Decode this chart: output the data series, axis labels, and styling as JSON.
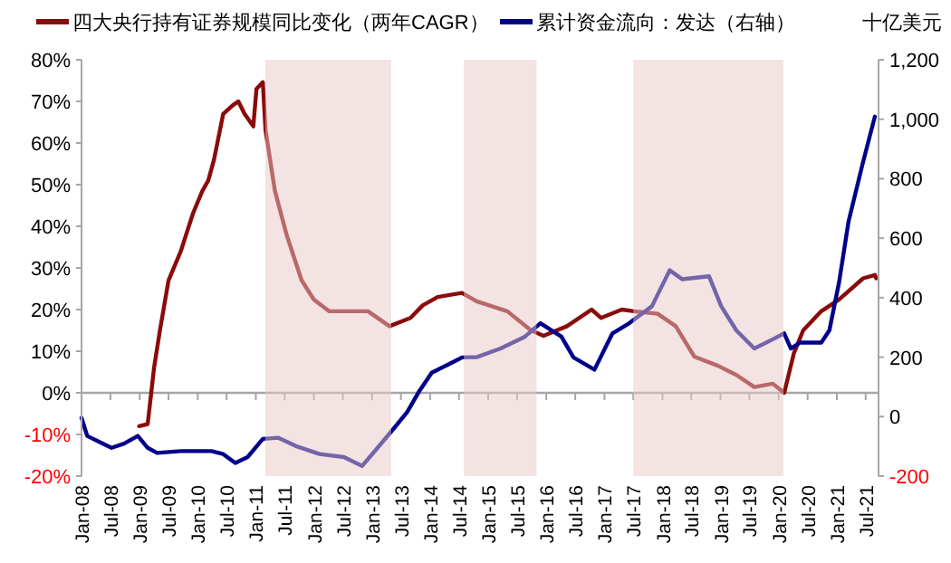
{
  "chart_data": {
    "type": "line",
    "y2label": "十亿美元",
    "legend": "top",
    "xlim": [
      "2008-01-01",
      "2021-09-20"
    ],
    "xticks": [
      {
        "value": "2008-01",
        "label": "Jan-08"
      },
      {
        "value": "2008-07",
        "label": "Jul-08"
      },
      {
        "value": "2009-01",
        "label": "Jan-09"
      },
      {
        "value": "2009-07",
        "label": "Jul-09"
      },
      {
        "value": "2010-01",
        "label": "Jan-10"
      },
      {
        "value": "2010-07",
        "label": "Jul-10"
      },
      {
        "value": "2011-01",
        "label": "Jan-11"
      },
      {
        "value": "2011-07",
        "label": "Jul-11"
      },
      {
        "value": "2012-01",
        "label": "Jan-12"
      },
      {
        "value": "2012-07",
        "label": "Jul-12"
      },
      {
        "value": "2013-01",
        "label": "Jan-13"
      },
      {
        "value": "2013-07",
        "label": "Jul-13"
      },
      {
        "value": "2014-01",
        "label": "Jan-14"
      },
      {
        "value": "2014-07",
        "label": "Jul-14"
      },
      {
        "value": "2015-01",
        "label": "Jan-15"
      },
      {
        "value": "2015-07",
        "label": "Jul-15"
      },
      {
        "value": "2016-01",
        "label": "Jan-16"
      },
      {
        "value": "2016-07",
        "label": "Jul-16"
      },
      {
        "value": "2017-01",
        "label": "Jan-17"
      },
      {
        "value": "2017-07",
        "label": "Jul-17"
      },
      {
        "value": "2018-01",
        "label": "Jan-18"
      },
      {
        "value": "2018-07",
        "label": "Jul-18"
      },
      {
        "value": "2019-01",
        "label": "Jan-19"
      },
      {
        "value": "2019-07",
        "label": "Jul-19"
      },
      {
        "value": "2020-01",
        "label": "Jan-20"
      },
      {
        "value": "2020-07",
        "label": "Jul-20"
      },
      {
        "value": "2021-01",
        "label": "Jan-21"
      },
      {
        "value": "2021-07",
        "label": "Jul-21"
      }
    ],
    "ylim": [
      -20,
      80
    ],
    "yticks": [
      {
        "value": -20,
        "label": "-20%"
      },
      {
        "value": -10,
        "label": "-10%"
      },
      {
        "value": 0,
        "label": "0%"
      },
      {
        "value": 10,
        "label": "10%"
      },
      {
        "value": 20,
        "label": "20%"
      },
      {
        "value": 30,
        "label": "30%"
      },
      {
        "value": 40,
        "label": "40%"
      },
      {
        "value": 50,
        "label": "50%"
      },
      {
        "value": 60,
        "label": "60%"
      },
      {
        "value": 70,
        "label": "70%"
      },
      {
        "value": 80,
        "label": "80%"
      }
    ],
    "y2lim": [
      -200,
      1200
    ],
    "y2ticks": [
      -200,
      0,
      200,
      400,
      600,
      800,
      {
        "value": 1000,
        "label": "1,000"
      },
      {
        "value": 1200,
        "label": "1,200"
      }
    ],
    "bands": [
      {
        "axis": "x",
        "from": "2011-03-01",
        "to": "2013-05-01",
        "color": "#e8c8c8"
      },
      {
        "axis": "x",
        "from": "2014-08-01",
        "to": "2015-11-01",
        "color": "#e8c8c8"
      },
      {
        "axis": "x",
        "from": "2017-07-01",
        "to": "2020-02-01",
        "color": "#e8c8c8"
      }
    ],
    "series": [
      {
        "name": "四大央行持有证券规模同比变化（两年CAGR）",
        "color": "#8b0a0a",
        "x": [
          "2008-12-28",
          "2009-02-20",
          "2009-04-01",
          "2009-05-08",
          "2009-07-01",
          "2009-09-16",
          "2009-12-01",
          "2010-01-30",
          "2010-03-08",
          "2010-04-13",
          "2010-06-10",
          "2010-08-07",
          "2010-09-13",
          "2010-10-22",
          "2010-12-16",
          "2011-01-05",
          "2011-02-14",
          "2011-03-03",
          "2011-05-01",
          "2011-07-13",
          "2011-10-16",
          "2012-01-01",
          "2012-04-05",
          "2012-07-27",
          "2012-12-06",
          "2013-04-20",
          "2013-08-30",
          "2013-11-15",
          "2014-02-17",
          "2014-07-20",
          "2014-10-20",
          "2015-05-01",
          "2015-09-27",
          "2015-12-15",
          "2016-05-10",
          "2016-10-12",
          "2016-12-10",
          "2017-04-20",
          "2017-07-05",
          "2017-12-01",
          "2018-03-25",
          "2018-07-20",
          "2018-12-16",
          "2019-04-10",
          "2019-08-01",
          "2019-11-25",
          "2020-02-05",
          "2020-04-05",
          "2020-06-03",
          "2020-09-25",
          "2021-01-15",
          "2021-06-15",
          "2021-08-28",
          "2021-09-05"
        ],
        "values": [
          -8,
          -7.5,
          6,
          15,
          27,
          34,
          43,
          48.5,
          51,
          56,
          67,
          69,
          70,
          67,
          64,
          73,
          74.6,
          63,
          48.5,
          38,
          27,
          22.4,
          19.6,
          19.6,
          19.6,
          16,
          18,
          21,
          23,
          24,
          22,
          19.6,
          15,
          13.7,
          16,
          20,
          18,
          20,
          19.6,
          19,
          16,
          8.7,
          6.5,
          4.3,
          1.4,
          2.2,
          0,
          9.4,
          15,
          19.6,
          22.4,
          27.5,
          28.3,
          27.5
        ]
      },
      {
        "name": "累计资金流向：发达（右轴）",
        "color": "#00008b",
        "axis": "y2",
        "x": [
          "2008-01-01",
          "2008-02-06",
          "2008-04-22",
          "2008-07-08",
          "2008-09-24",
          "2008-12-20",
          "2009-02-20",
          "2009-04-20",
          "2009-09-16",
          "2010-03-28",
          "2010-06-10",
          "2010-08-25",
          "2010-11-10",
          "2011-02-14",
          "2011-05-20",
          "2011-09-10",
          "2012-02-06",
          "2012-07-08",
          "2012-10-30",
          "2013-02-20",
          "2013-05-25",
          "2013-08-10",
          "2013-10-26",
          "2014-01-11",
          "2014-05-05",
          "2014-07-20",
          "2014-10-20",
          "2015-03-20",
          "2015-08-20",
          "2015-11-25",
          "2016-04-05",
          "2016-06-20",
          "2016-10-30",
          "2017-02-20",
          "2017-05-25",
          "2017-10-26",
          "2018-02-15",
          "2018-05-05",
          "2018-10-20",
          "2019-01-05",
          "2019-04-10",
          "2019-08-01",
          "2019-11-25",
          "2020-02-05",
          "2020-03-18",
          "2020-05-15",
          "2020-09-25",
          "2020-11-15",
          "2021-01-15",
          "2021-03-15",
          "2021-06-15",
          "2021-08-28"
        ],
        "values": [
          -4,
          -65,
          -85,
          -105,
          -91,
          -65,
          -105,
          -122,
          -116,
          -116,
          -126,
          -156,
          -136,
          -75,
          -71,
          -99,
          -126,
          -136,
          -166,
          -95,
          -35,
          16,
          87,
          148,
          178,
          199,
          200,
          229,
          269,
          314,
          269,
          199,
          158,
          280,
          310,
          371,
          492,
          462,
          472,
          371,
          290,
          229,
          260,
          280,
          229,
          249,
          249,
          290,
          452,
          655,
          857,
          1009
        ]
      }
    ]
  }
}
